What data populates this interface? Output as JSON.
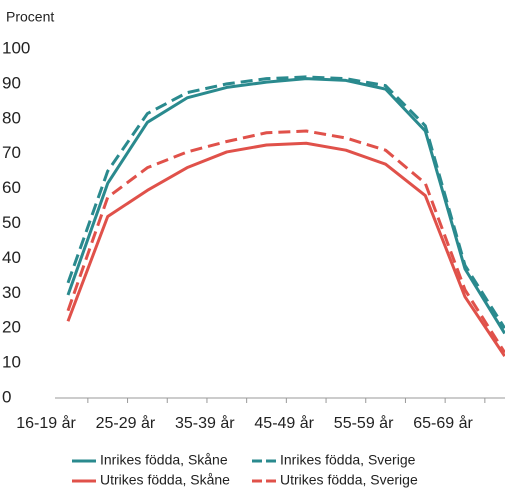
{
  "chart_data": {
    "type": "line",
    "y_label": "Procent",
    "categories": [
      "16-19 år",
      null,
      "25-29 år",
      null,
      "35-39 år",
      null,
      "45-49 år",
      null,
      "55-59 år",
      null,
      "65-69 år",
      null
    ],
    "series": [
      {
        "name": "Inrikes födda, Skåne",
        "color": "#2a8a8e",
        "dashed": false,
        "values": [
          29.5,
          61.5,
          79,
          86,
          89,
          90.5,
          91.5,
          91,
          88.5,
          76.5,
          37,
          18.5
        ]
      },
      {
        "name": "Inrikes födda, Sverige",
        "color": "#2a8a8e",
        "dashed": true,
        "values": [
          33,
          65,
          81.5,
          87.5,
          90,
          91.5,
          92,
          91.5,
          89.5,
          78,
          38,
          20
        ]
      },
      {
        "name": "Utrikes födda, Skåne",
        "color": "#e0514a",
        "dashed": false,
        "values": [
          22,
          52,
          59.5,
          66,
          70.5,
          72.5,
          73,
          71,
          67,
          58,
          29,
          12
        ]
      },
      {
        "name": "Utrikes födda, Sverige",
        "color": "#e0514a",
        "dashed": true,
        "values": [
          25,
          57.5,
          66,
          70.5,
          73.5,
          76,
          76.5,
          74.5,
          71,
          61.5,
          31,
          13
        ]
      }
    ],
    "ylim": [
      0,
      100
    ],
    "yticks": [
      0,
      10,
      20,
      30,
      40,
      50,
      60,
      70,
      80,
      90,
      100
    ],
    "grid": false
  }
}
